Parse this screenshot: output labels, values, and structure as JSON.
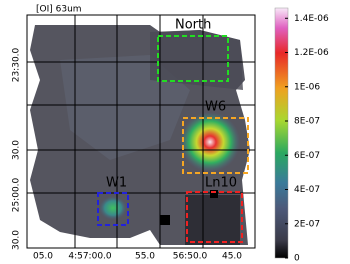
{
  "chart_data": {
    "type": "image",
    "title": "[OI] 63um",
    "x_tick_labels": [
      "05.0",
      "4:57:00.0",
      "55.0",
      "56:50.0",
      "45.0"
    ],
    "y_tick_labels": [
      "23:30.0",
      "30.0",
      "25:00.0",
      "30.0"
    ],
    "regions": [
      {
        "label": "North",
        "color": "#22dd22"
      },
      {
        "label": "W6",
        "color": "#f5a623"
      },
      {
        "label": "W1",
        "color": "#2222dd"
      },
      {
        "label": "Ln10",
        "color": "#ee2222"
      }
    ],
    "colorbar": {
      "clim": [
        0,
        1.46e-06
      ],
      "ticks": [
        {
          "value": 0,
          "label": "0"
        },
        {
          "value": 2e-07,
          "label": "2E-07"
        },
        {
          "value": 4e-07,
          "label": "4E-07"
        },
        {
          "value": 6e-07,
          "label": "6E-07"
        },
        {
          "value": 8e-07,
          "label": "8E-07"
        },
        {
          "value": 1e-06,
          "label": "1E-06"
        },
        {
          "value": 1.2e-06,
          "label": "1.2E-06"
        },
        {
          "value": 1.4e-06,
          "label": "1.4E-06"
        }
      ]
    }
  }
}
